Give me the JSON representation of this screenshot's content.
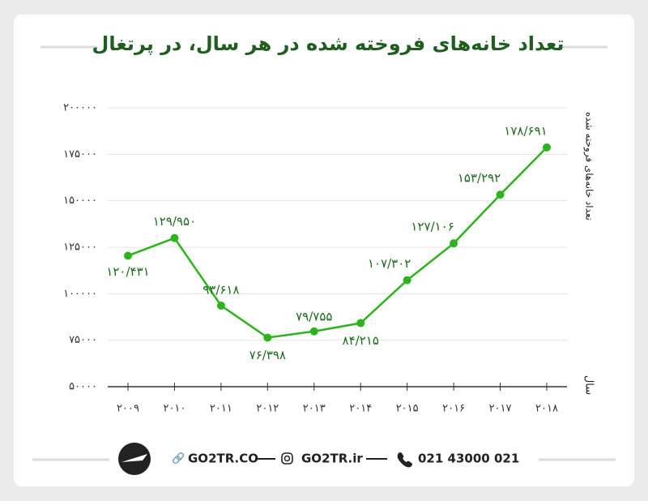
{
  "chart_data": {
    "type": "line",
    "title": "تعداد خانه‌های فروخته شده در هر سال، در پرتغال",
    "y_label": "تعداد خانه‌های فروخته شده",
    "x_label": "سال",
    "categories": [
      "۲۰۰۹",
      "۲۰۱۰",
      "۲۰۱۱",
      "۲۰۱۲",
      "۲۰۱۳",
      "۲۰۱۴",
      "۲۰۱۵",
      "۲۰۱۶",
      "۲۰۱۷",
      "۲۰۱۸"
    ],
    "values": [
      120431,
      129950,
      93618,
      76398,
      79755,
      84215,
      107302,
      127106,
      153292,
      178691
    ],
    "value_labels": [
      "۱۲۰/۴۳۱",
      "۱۲۹/۹۵۰",
      "۹۳/۶۱۸",
      "۷۶/۳۹۸",
      "۷۹/۷۵۵",
      "۸۴/۲۱۵",
      "۱۰۷/۳۰۲",
      "۱۲۷/۱۰۶",
      "۱۵۳/۲۹۲",
      "۱۷۸/۶۹۱"
    ],
    "color": "#2db31d",
    "ylim": [
      50000,
      200000
    ],
    "yticks": [
      {
        "value": 50000,
        "label": "۵۰۰۰۰"
      },
      {
        "value": 75000,
        "label": "۷۵۰۰۰"
      },
      {
        "value": 100000,
        "label": "۱۰۰۰۰۰"
      },
      {
        "value": 125000,
        "label": "۱۲۵۰۰۰"
      },
      {
        "value": 150000,
        "label": "۱۵۰۰۰۰"
      },
      {
        "value": 175000,
        "label": "۱۷۵۰۰۰"
      },
      {
        "value": 200000,
        "label": "۲۰۰۰۰۰"
      }
    ],
    "grid": true
  },
  "footer": {
    "website": "GO2TR.CO",
    "instagram": "GO2TR.ir",
    "phone": "021 43000 021"
  }
}
